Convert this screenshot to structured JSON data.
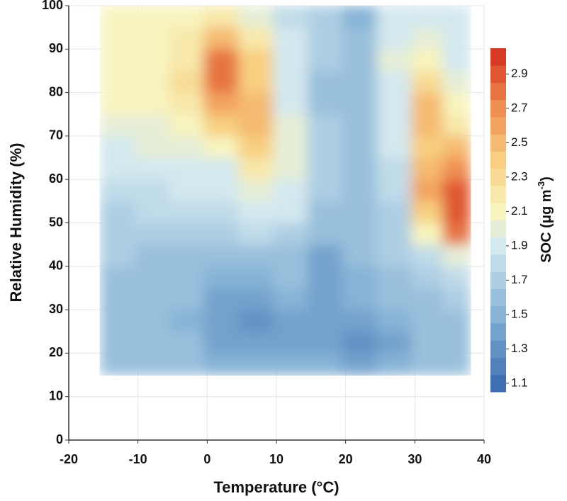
{
  "chart_data": {
    "type": "contour",
    "x_label": "Temperature (°C)",
    "y_label": "Relative Humidity (%)",
    "colorbar_title": [
      "SOC (μg m",
      "-3",
      ")"
    ],
    "xlim": [
      -20,
      40
    ],
    "xticks": [
      -20,
      -10,
      0,
      10,
      20,
      30,
      40
    ],
    "ylim": [
      0,
      100
    ],
    "yticks": [
      0,
      10,
      20,
      30,
      40,
      50,
      60,
      70,
      80,
      90,
      100
    ],
    "grid": true,
    "x": [
      -13,
      -8,
      -3,
      2,
      7,
      12,
      17,
      22,
      27,
      32,
      36
    ],
    "y": [
      17.5,
      22.5,
      27.5,
      32.5,
      37.5,
      42.5,
      47.5,
      52.5,
      57.5,
      62.5,
      67.5,
      72.5,
      77.5,
      82.5,
      87.5,
      92.5,
      97.5
    ],
    "z": [
      [
        1.62,
        1.6,
        1.58,
        1.52,
        1.48,
        1.5,
        1.46,
        1.44,
        1.52,
        1.6,
        1.62
      ],
      [
        1.62,
        1.6,
        1.55,
        1.45,
        1.38,
        1.4,
        1.36,
        1.3,
        1.45,
        1.58,
        1.62
      ],
      [
        1.63,
        1.6,
        1.52,
        1.4,
        1.33,
        1.42,
        1.38,
        1.4,
        1.52,
        1.6,
        1.65
      ],
      [
        1.64,
        1.62,
        1.55,
        1.45,
        1.42,
        1.48,
        1.45,
        1.5,
        1.58,
        1.63,
        1.7
      ],
      [
        1.65,
        1.63,
        1.55,
        1.5,
        1.52,
        1.55,
        1.42,
        1.52,
        1.62,
        1.68,
        1.8
      ],
      [
        1.68,
        1.64,
        1.55,
        1.55,
        1.6,
        1.62,
        1.4,
        1.55,
        1.66,
        1.8,
        2.0
      ],
      [
        1.75,
        1.72,
        1.68,
        1.72,
        1.78,
        1.75,
        1.55,
        1.6,
        1.7,
        2.1,
        2.8
      ],
      [
        1.72,
        1.8,
        1.82,
        1.84,
        1.92,
        1.85,
        1.65,
        1.62,
        1.75,
        2.4,
        2.9
      ],
      [
        1.78,
        1.82,
        1.85,
        1.88,
        2.05,
        1.92,
        1.68,
        1.62,
        1.8,
        2.6,
        2.9
      ],
      [
        1.85,
        1.88,
        1.9,
        1.95,
        2.2,
        2.0,
        1.7,
        1.62,
        1.82,
        2.5,
        2.7
      ],
      [
        1.95,
        1.98,
        1.98,
        2.1,
        2.35,
        2.05,
        1.7,
        1.6,
        1.85,
        2.4,
        2.5
      ],
      [
        2.05,
        2.05,
        2.08,
        2.4,
        2.5,
        2.0,
        1.68,
        1.58,
        1.88,
        2.45,
        2.25
      ],
      [
        2.1,
        2.12,
        2.2,
        2.6,
        2.45,
        1.95,
        1.65,
        1.58,
        1.9,
        2.5,
        2.1
      ],
      [
        2.12,
        2.15,
        2.28,
        2.8,
        2.4,
        1.9,
        1.65,
        1.6,
        1.95,
        2.3,
        2.0
      ],
      [
        2.15,
        2.15,
        2.25,
        2.75,
        2.35,
        1.9,
        1.7,
        1.6,
        2.0,
        2.15,
        1.95
      ],
      [
        2.12,
        2.15,
        2.2,
        2.5,
        2.2,
        1.85,
        1.72,
        1.55,
        1.95,
        2.0,
        1.92
      ],
      [
        2.1,
        2.12,
        2.15,
        2.25,
        2.05,
        1.8,
        1.7,
        1.5,
        1.92,
        1.95,
        1.9
      ]
    ],
    "zlim": [
      1.05,
      3.05
    ],
    "level_step": 0.1,
    "zticks": [
      1.1,
      1.3,
      1.5,
      1.7,
      1.9,
      2.1,
      2.3,
      2.5,
      2.7,
      2.9
    ],
    "colorscale": [
      [
        1.1,
        "#3f6fb2"
      ],
      [
        1.5,
        "#86b3d6"
      ],
      [
        1.9,
        "#d3e8ef"
      ],
      [
        2.1,
        "#f8f4bf"
      ],
      [
        2.4,
        "#f8cf80"
      ],
      [
        2.7,
        "#f08f52"
      ],
      [
        3.0,
        "#d63a24"
      ]
    ]
  }
}
